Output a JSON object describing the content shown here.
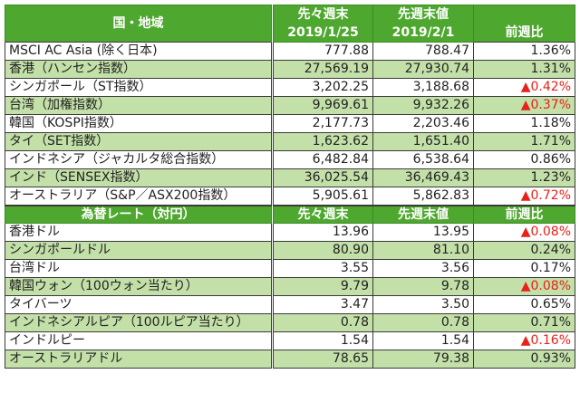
{
  "indices": {
    "headers": {
      "region": "国・地域",
      "prev2_week_label": "先々週末",
      "prev2_week_date": "2019/1/25",
      "prev_week_label": "先週末値",
      "prev_week_date": "2019/2/1",
      "change": "前週比"
    },
    "rows": [
      {
        "name": "MSCI AC Asia (除く日本)",
        "prev2": "777.88",
        "prev": "788.47",
        "change": "1.36%",
        "negative": false
      },
      {
        "name": "香港（ハンセン指数）",
        "prev2": "27,569.19",
        "prev": "27,930.74",
        "change": "1.31%",
        "negative": false
      },
      {
        "name": "シンガポール（ST指数）",
        "prev2": "3,202.25",
        "prev": "3,188.68",
        "change": "▲0.42%",
        "negative": true
      },
      {
        "name": "台湾（加権指数）",
        "prev2": "9,969.61",
        "prev": "9,932.26",
        "change": "▲0.37%",
        "negative": true
      },
      {
        "name": "韓国（KOSPI指数）",
        "prev2": "2,177.73",
        "prev": "2,203.46",
        "change": "1.18%",
        "negative": false
      },
      {
        "name": "タイ（SET指数）",
        "prev2": "1,623.62",
        "prev": "1,651.40",
        "change": "1.71%",
        "negative": false
      },
      {
        "name": "インドネシア（ジャカルタ総合指数）",
        "prev2": "6,482.84",
        "prev": "6,538.64",
        "change": "0.86%",
        "negative": false
      },
      {
        "name": "インド（SENSEX指数）",
        "prev2": "36,025.54",
        "prev": "36,469.43",
        "change": "1.23%",
        "negative": false
      },
      {
        "name": "オーストラリア（S&P／ASX200指数）",
        "prev2": "5,905.61",
        "prev": "5,862.83",
        "change": "▲0.72%",
        "negative": true
      }
    ]
  },
  "fx": {
    "headers": {
      "title": "為替レート（対円）",
      "prev2_week_label": "先々週末",
      "prev_week_label": "先週末値",
      "change": "前週比"
    },
    "rows": [
      {
        "name": "香港ドル",
        "prev2": "13.96",
        "prev": "13.95",
        "change": "▲0.08%",
        "negative": true
      },
      {
        "name": "シンガポールドル",
        "prev2": "80.90",
        "prev": "81.10",
        "change": "0.24%",
        "negative": false
      },
      {
        "name": "台湾ドル",
        "prev2": "3.55",
        "prev": "3.56",
        "change": "0.17%",
        "negative": false
      },
      {
        "name": "韓国ウォン（100ウォン当たり）",
        "prev2": "9.79",
        "prev": "9.78",
        "change": "▲0.08%",
        "negative": true
      },
      {
        "name": "タイバーツ",
        "prev2": "3.47",
        "prev": "3.50",
        "change": "0.65%",
        "negative": false
      },
      {
        "name": "インドネシアルピア（100ルピア当たり）",
        "prev2": "0.78",
        "prev": "0.78",
        "change": "0.71%",
        "negative": false
      },
      {
        "name": "インドルピー",
        "prev2": "1.54",
        "prev": "1.54",
        "change": "▲0.16%",
        "negative": true
      },
      {
        "name": "オーストラリアドル",
        "prev2": "78.65",
        "prev": "79.38",
        "change": "0.93%",
        "negative": false
      }
    ]
  },
  "colors": {
    "header_green": "#4ea72e",
    "row_alt_green": "#c3e0a8",
    "negative_red": "#e8211a"
  }
}
